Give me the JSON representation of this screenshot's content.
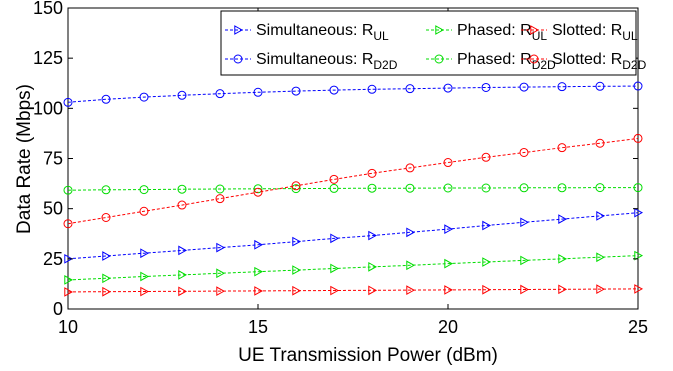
{
  "chart_data": {
    "type": "line",
    "title": "",
    "xlabel": "UE Transmission Power (dBm)",
    "ylabel": "Data Rate (Mbps)",
    "xlim": [
      10,
      25
    ],
    "ylim": [
      0,
      150
    ],
    "xticks": [
      10,
      15,
      20,
      25
    ],
    "yticks": [
      0,
      25,
      50,
      75,
      100,
      125,
      150
    ],
    "grid": false,
    "legend_position": "top-right",
    "x": [
      10,
      11,
      12,
      13,
      14,
      15,
      16,
      17,
      18,
      19,
      20,
      21,
      22,
      23,
      24,
      25
    ],
    "series": [
      {
        "name": "Simultaneous: R",
        "sub": "UL",
        "color": "#0000ff",
        "marker": "triangle-right",
        "values": [
          25.0,
          26.4,
          27.8,
          29.2,
          30.6,
          32.0,
          33.6,
          35.2,
          36.6,
          38.2,
          39.8,
          41.6,
          43.2,
          44.8,
          46.4,
          48.0
        ]
      },
      {
        "name": "Phased: R",
        "sub": "UL",
        "color": "#00dd00",
        "marker": "triangle-right",
        "values": [
          14.5,
          15.3,
          16.2,
          17.0,
          17.8,
          18.6,
          19.4,
          20.2,
          21.0,
          21.8,
          22.6,
          23.4,
          24.2,
          25.0,
          25.8,
          26.6
        ]
      },
      {
        "name": "Slotted: R",
        "sub": "UL",
        "color": "#ff0000",
        "marker": "triangle-right",
        "values": [
          8.5,
          8.6,
          8.7,
          8.8,
          8.9,
          9.0,
          9.1,
          9.2,
          9.3,
          9.4,
          9.5,
          9.6,
          9.7,
          9.8,
          9.9,
          10.0
        ]
      },
      {
        "name": "Simultaneous: R",
        "sub": "D2D",
        "color": "#0000ff",
        "marker": "circle",
        "values": [
          103.0,
          104.5,
          105.6,
          106.5,
          107.3,
          108.0,
          108.6,
          109.1,
          109.5,
          109.8,
          110.1,
          110.4,
          110.6,
          110.8,
          111.0,
          111.1
        ]
      },
      {
        "name": "Phased: R",
        "sub": "D2D",
        "color": "#00dd00",
        "marker": "circle",
        "values": [
          59.2,
          59.4,
          59.5,
          59.7,
          59.8,
          59.9,
          60.0,
          60.1,
          60.2,
          60.2,
          60.3,
          60.3,
          60.4,
          60.4,
          60.5,
          60.5
        ]
      },
      {
        "name": "Slotted: R",
        "sub": "D2D",
        "color": "#ff0000",
        "marker": "circle",
        "values": [
          42.5,
          45.6,
          48.7,
          51.8,
          55.0,
          58.2,
          61.4,
          64.6,
          67.6,
          70.3,
          73.0,
          75.6,
          78.0,
          80.4,
          82.6,
          85.0
        ]
      }
    ],
    "legend_order": [
      0,
      1,
      2,
      3,
      4,
      5
    ]
  }
}
